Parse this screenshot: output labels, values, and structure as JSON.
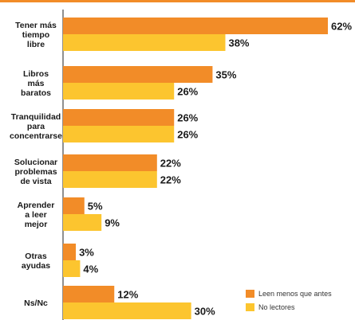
{
  "chart_data": {
    "type": "bar",
    "orientation": "horizontal",
    "value_suffix": "%",
    "xlim": [
      0,
      62
    ],
    "grid": false,
    "legend_position": "bottom-right",
    "top_rule_color": "#f28c28",
    "categories": [
      [
        "Tener más",
        "tiempo",
        "libre"
      ],
      [
        "Libros",
        "más",
        "baratos"
      ],
      [
        "Tranquilidad",
        "para",
        "concentrarse"
      ],
      [
        "Solucionar",
        "problemas",
        "de vista"
      ],
      [
        "Aprender",
        "a leer",
        "mejor"
      ],
      [
        "Otras",
        "ayudas"
      ],
      [
        "Ns/Nc"
      ]
    ],
    "series": [
      {
        "name": "Leen menos que antes",
        "color": "#f28c28",
        "values": [
          62,
          35,
          26,
          22,
          5,
          3,
          12
        ]
      },
      {
        "name": "No lectores",
        "color": "#fcc52f",
        "values": [
          38,
          26,
          26,
          22,
          9,
          4,
          30
        ]
      }
    ]
  }
}
